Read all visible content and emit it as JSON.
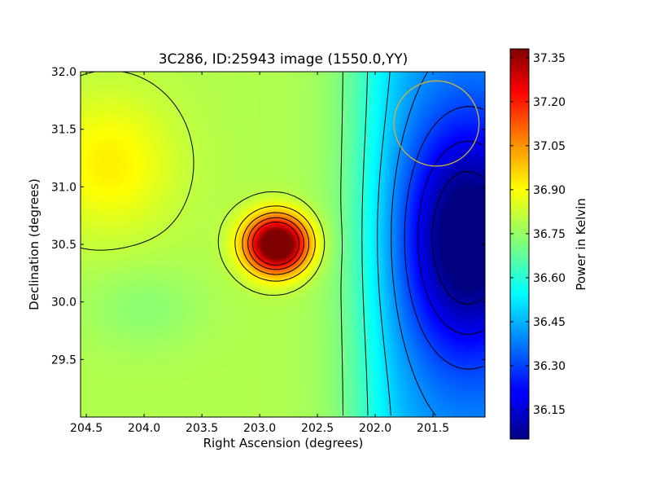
{
  "chart_data": {
    "type": "heatmap",
    "title": "3C286, ID:25943 image (1550.0,YY)",
    "xlabel": "Right Ascension (degrees)",
    "ylabel": "Declination (degrees)",
    "colorbar_label": "Power in Kelvin",
    "xlim": [
      204.55,
      201.05
    ],
    "ylim": [
      29.0,
      32.0
    ],
    "x_ticks": [
      204.5,
      204.0,
      203.5,
      203.0,
      202.5,
      202.0,
      201.5
    ],
    "x_tick_labels": [
      "204.5",
      "204.0",
      "203.5",
      "203.0",
      "202.5",
      "202.0",
      "201.5"
    ],
    "y_ticks": [
      29.5,
      30.0,
      30.5,
      31.0,
      31.5,
      32.0
    ],
    "y_tick_labels": [
      "29.5",
      "30.0",
      "30.5",
      "31.0",
      "31.5",
      "32.0"
    ],
    "color_range": [
      36.05,
      37.38
    ],
    "colorbar_ticks": [
      36.15,
      36.3,
      36.45,
      36.6,
      36.75,
      36.9,
      37.05,
      37.2,
      37.35
    ],
    "colorbar_tick_labels": [
      "36.15",
      "36.30",
      "36.45",
      "36.60",
      "36.75",
      "36.90",
      "37.05",
      "37.20",
      "37.35"
    ],
    "colormap": "jet",
    "contours": "on",
    "peak": {
      "ra": 202.85,
      "dec": 30.5,
      "value": 37.35
    },
    "beam_circle": {
      "ra": 201.47,
      "dec": 31.55,
      "radius_deg": 0.37,
      "color": "#c8b43c"
    }
  }
}
